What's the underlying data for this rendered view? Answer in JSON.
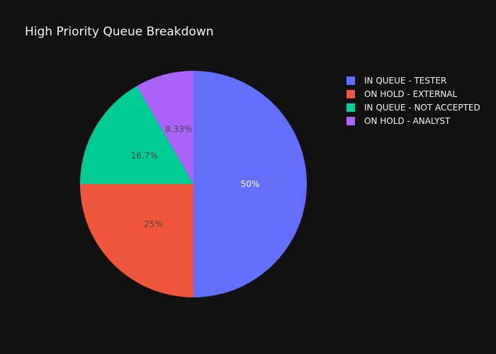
{
  "chart_data": {
    "type": "pie",
    "title": "High Priority Queue Breakdown",
    "background": "#111111",
    "text_color": "#f2f5fa",
    "legend_position": "top-right",
    "direction": "clockwise",
    "start_angle_deg": 90,
    "slices": [
      {
        "label": "IN QUEUE - TESTER",
        "value": 6,
        "percent_text": "50%",
        "color": "#636efa",
        "label_color": "#ffffff"
      },
      {
        "label": "ON HOLD - EXTERNAL",
        "value": 3,
        "percent_text": "25%",
        "color": "#ef553b",
        "label_color": "#444444"
      },
      {
        "label": "IN QUEUE - NOT ACCEPTED",
        "value": 2,
        "percent_text": "16.7%",
        "color": "#00cc96",
        "label_color": "#444444"
      },
      {
        "label": "ON HOLD - ANALYST",
        "value": 1,
        "percent_text": "8.33%",
        "color": "#ab63fa",
        "label_color": "#444444"
      }
    ]
  }
}
